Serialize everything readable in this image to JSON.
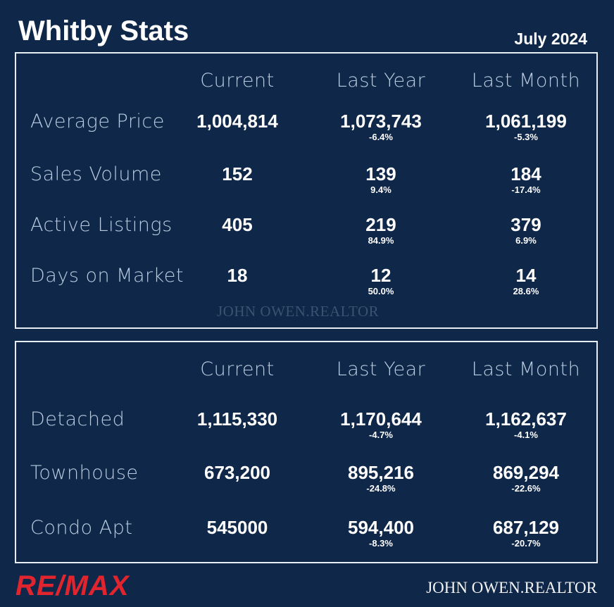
{
  "header": {
    "title": "Whitby Stats",
    "date": "July 2024"
  },
  "table1": {
    "columns": [
      "Current",
      "Last Year",
      "Last Month"
    ],
    "rows": [
      {
        "label": "Average Price",
        "values": [
          "1,004,814",
          "1,073,743",
          "1,061,199"
        ],
        "changes": [
          "-6.4%",
          "-5.3%"
        ]
      },
      {
        "label": "Sales Volume",
        "values": [
          "152",
          "139",
          "184"
        ],
        "changes": [
          "9.4%",
          "-17.4%"
        ]
      },
      {
        "label": "Active Listings",
        "values": [
          "405",
          "219",
          "379"
        ],
        "changes": [
          "84.9%",
          "6.9%"
        ]
      },
      {
        "label": "Days on Market",
        "values": [
          "18",
          "12",
          "14"
        ],
        "changes": [
          "50.0%",
          "28.6%"
        ]
      }
    ]
  },
  "watermark": "JOHN OWEN.REALTOR",
  "table2": {
    "columns": [
      "Current",
      "Last Year",
      "Last Month"
    ],
    "rows": [
      {
        "label": "Detached",
        "values": [
          "1,115,330",
          "1,170,644",
          "1,162,637"
        ],
        "changes": [
          "-4.7%",
          "-4.1%"
        ]
      },
      {
        "label": "Townhouse",
        "values": [
          "673,200",
          "895,216",
          "869,294"
        ],
        "changes": [
          "-24.8%",
          "-22.6%"
        ]
      },
      {
        "label": "Condo Apt",
        "values": [
          "545000",
          "594,400",
          "687,129"
        ],
        "changes": [
          "-8.3%",
          "-20.7%"
        ]
      }
    ]
  },
  "footer": {
    "logo": "RE/MAX",
    "brand": "JOHN OWEN.REALTOR"
  }
}
